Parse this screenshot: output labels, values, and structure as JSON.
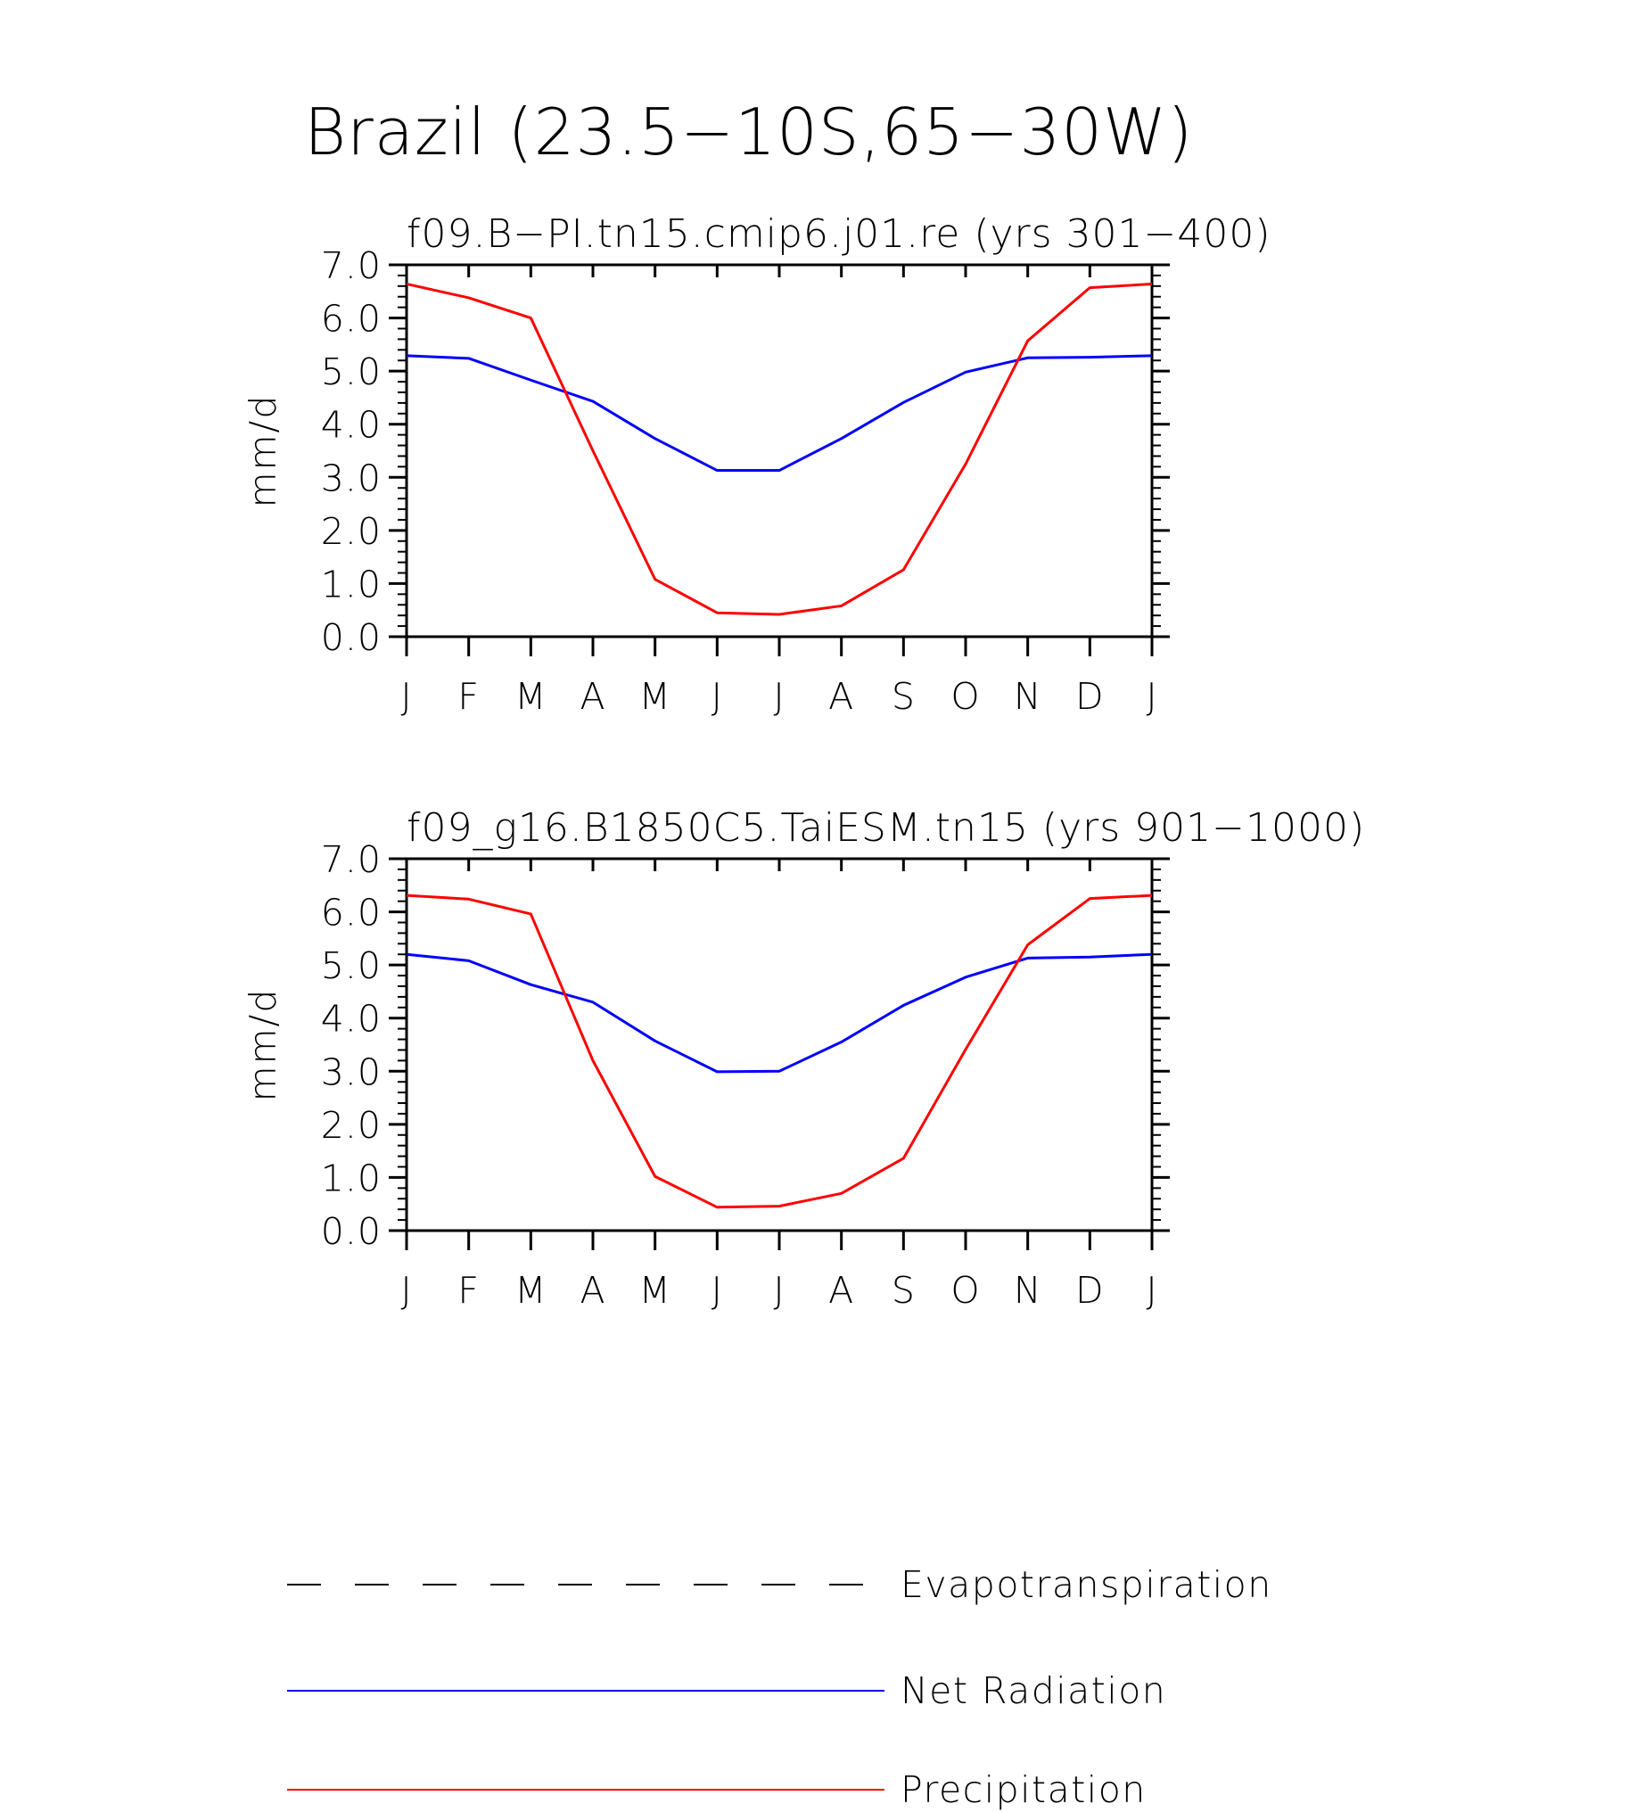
{
  "title": "Brazil (23.5−10S,65−30W)",
  "chart_data": [
    {
      "type": "line",
      "title": "f09.B−PI.tn15.cmip6.j01.re (yrs 301−400)",
      "ylabel": "mm/d",
      "xlabel": "",
      "ylim": [
        0,
        7
      ],
      "yticks": [
        "0.0",
        "1.0",
        "2.0",
        "3.0",
        "4.0",
        "5.0",
        "6.0",
        "7.0"
      ],
      "categories": [
        "J",
        "F",
        "M",
        "A",
        "M",
        "J",
        "J",
        "A",
        "S",
        "O",
        "N",
        "D",
        "J"
      ],
      "series": [
        {
          "name": "Net Radiation",
          "color": "#0000ff",
          "values": [
            5.29,
            5.24,
            4.83,
            4.43,
            3.73,
            3.13,
            3.13,
            3.73,
            4.41,
            4.98,
            5.25,
            5.26,
            5.29
          ]
        },
        {
          "name": "Precipitation",
          "color": "#ff0000",
          "values": [
            6.64,
            6.38,
            6.0,
            3.5,
            1.08,
            0.45,
            0.42,
            0.58,
            1.26,
            3.25,
            5.57,
            6.57,
            6.64
          ]
        }
      ]
    },
    {
      "type": "line",
      "title": "f09_g16.B1850C5.TaiESM.tn15 (yrs 901−1000)",
      "ylabel": "mm/d",
      "xlabel": "",
      "ylim": [
        0,
        7
      ],
      "yticks": [
        "0.0",
        "1.0",
        "2.0",
        "3.0",
        "4.0",
        "5.0",
        "6.0",
        "7.0"
      ],
      "categories": [
        "J",
        "F",
        "M",
        "A",
        "M",
        "J",
        "J",
        "A",
        "S",
        "O",
        "N",
        "D",
        "J"
      ],
      "series": [
        {
          "name": "Net Radiation",
          "color": "#0000ff",
          "values": [
            5.2,
            5.08,
            4.63,
            4.3,
            3.57,
            2.99,
            3.0,
            3.55,
            4.24,
            4.77,
            5.13,
            5.15,
            5.2
          ]
        },
        {
          "name": "Precipitation",
          "color": "#ff0000",
          "values": [
            6.31,
            6.24,
            5.96,
            3.2,
            1.02,
            0.44,
            0.46,
            0.7,
            1.36,
            3.41,
            5.38,
            6.25,
            6.31
          ]
        }
      ]
    }
  ],
  "legend": [
    {
      "label": "Evapotranspiration",
      "color": "#000000",
      "style": "dashed"
    },
    {
      "label": "Net Radiation",
      "color": "#0000ff",
      "style": "solid"
    },
    {
      "label": "Precipitation",
      "color": "#ff0000",
      "style": "solid"
    }
  ]
}
